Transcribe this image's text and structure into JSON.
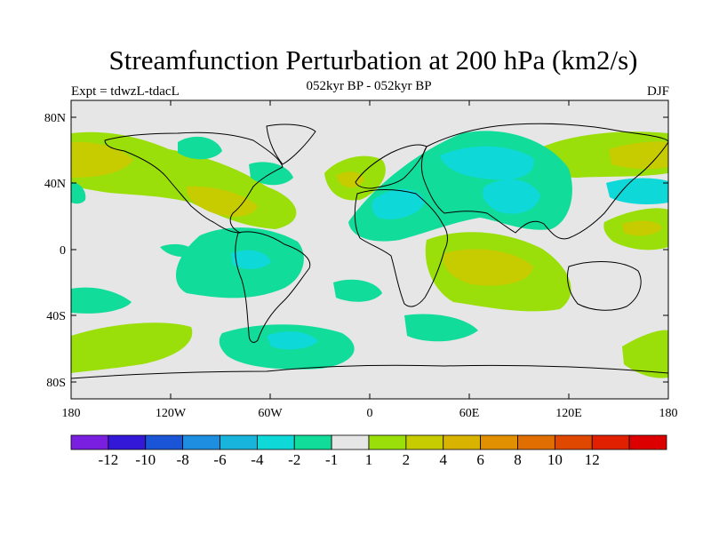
{
  "title": "Streamfunction Perturbation at 200 hPa (km2/s)",
  "subtitle": "052kyr BP - 052kyr BP",
  "left_label": "Expt = tdwzL-tdacL",
  "right_label": "DJF",
  "lat_ticks": [
    "80N",
    "40N",
    "0",
    "40S",
    "80S"
  ],
  "lon_ticks": [
    "180",
    "120W",
    "60W",
    "0",
    "60E",
    "120E",
    "180"
  ],
  "colorbar": {
    "colors": [
      "#7a1fe0",
      "#3418d8",
      "#1a55d8",
      "#1d8ee0",
      "#19b4dc",
      "#0fd8d8",
      "#12dc9a",
      "#e6e6e6",
      "#9ade0a",
      "#c6cc00",
      "#d8b400",
      "#e09000",
      "#e06e00",
      "#e04800",
      "#e02000",
      "#dc0000"
    ],
    "labels": [
      "-12",
      "-10",
      "-8",
      "-6",
      "-4",
      "-2",
      "-1",
      "1",
      "2",
      "4",
      "6",
      "8",
      "10",
      "12"
    ]
  },
  "map_colors": {
    "background": "#e6e6e6",
    "pos1": "#9ade0a",
    "pos2": "#c6cc00",
    "neg1": "#12dc9a",
    "neg2": "#0fd8d8"
  }
}
